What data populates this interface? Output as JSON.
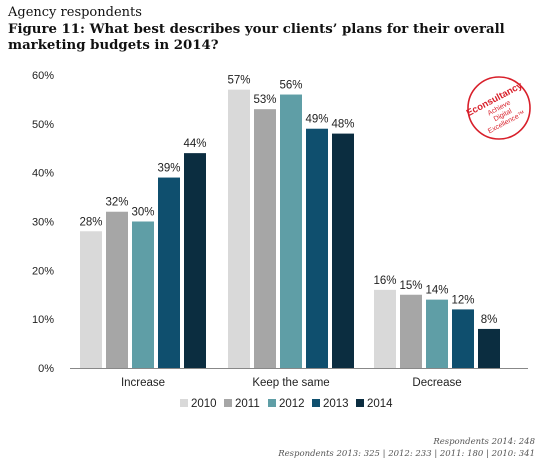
{
  "heading": {
    "kicker": "Agency respondents",
    "title": "Figure 11: What best describes your clients’ plans for their overall marketing budgets in 2014?"
  },
  "logo": {
    "text": "Econsultancy Achieve Digital Excellence™",
    "color": "#d81f2a"
  },
  "respondents": {
    "line1": "Respondents 2014: 248",
    "line2": "Respondents 2013: 325 | 2012: 233 | 2011: 180 | 2010: 341"
  },
  "chart_data": {
    "type": "bar",
    "title": "",
    "xlabel": "",
    "ylabel": "",
    "ylim": [
      0,
      60
    ],
    "y_ticks": [
      0,
      10,
      20,
      30,
      40,
      50,
      60
    ],
    "y_tick_labels": [
      "0%",
      "10%",
      "20%",
      "30%",
      "40%",
      "50%",
      "60%"
    ],
    "grid": false,
    "legend_position": "bottom",
    "categories": [
      "Increase",
      "Keep the same",
      "Decrease"
    ],
    "series": [
      {
        "name": "2010",
        "color": "#d9d9d9",
        "values": [
          28,
          57,
          16
        ]
      },
      {
        "name": "2011",
        "color": "#a6a6a6",
        "values": [
          32,
          53,
          15
        ]
      },
      {
        "name": "2012",
        "color": "#5f9ea6",
        "values": [
          30,
          56,
          14
        ]
      },
      {
        "name": "2013",
        "color": "#0f4f6e",
        "values": [
          39,
          49,
          12
        ]
      },
      {
        "name": "2014",
        "color": "#0b2d40",
        "values": [
          44,
          48,
          8
        ]
      }
    ]
  }
}
